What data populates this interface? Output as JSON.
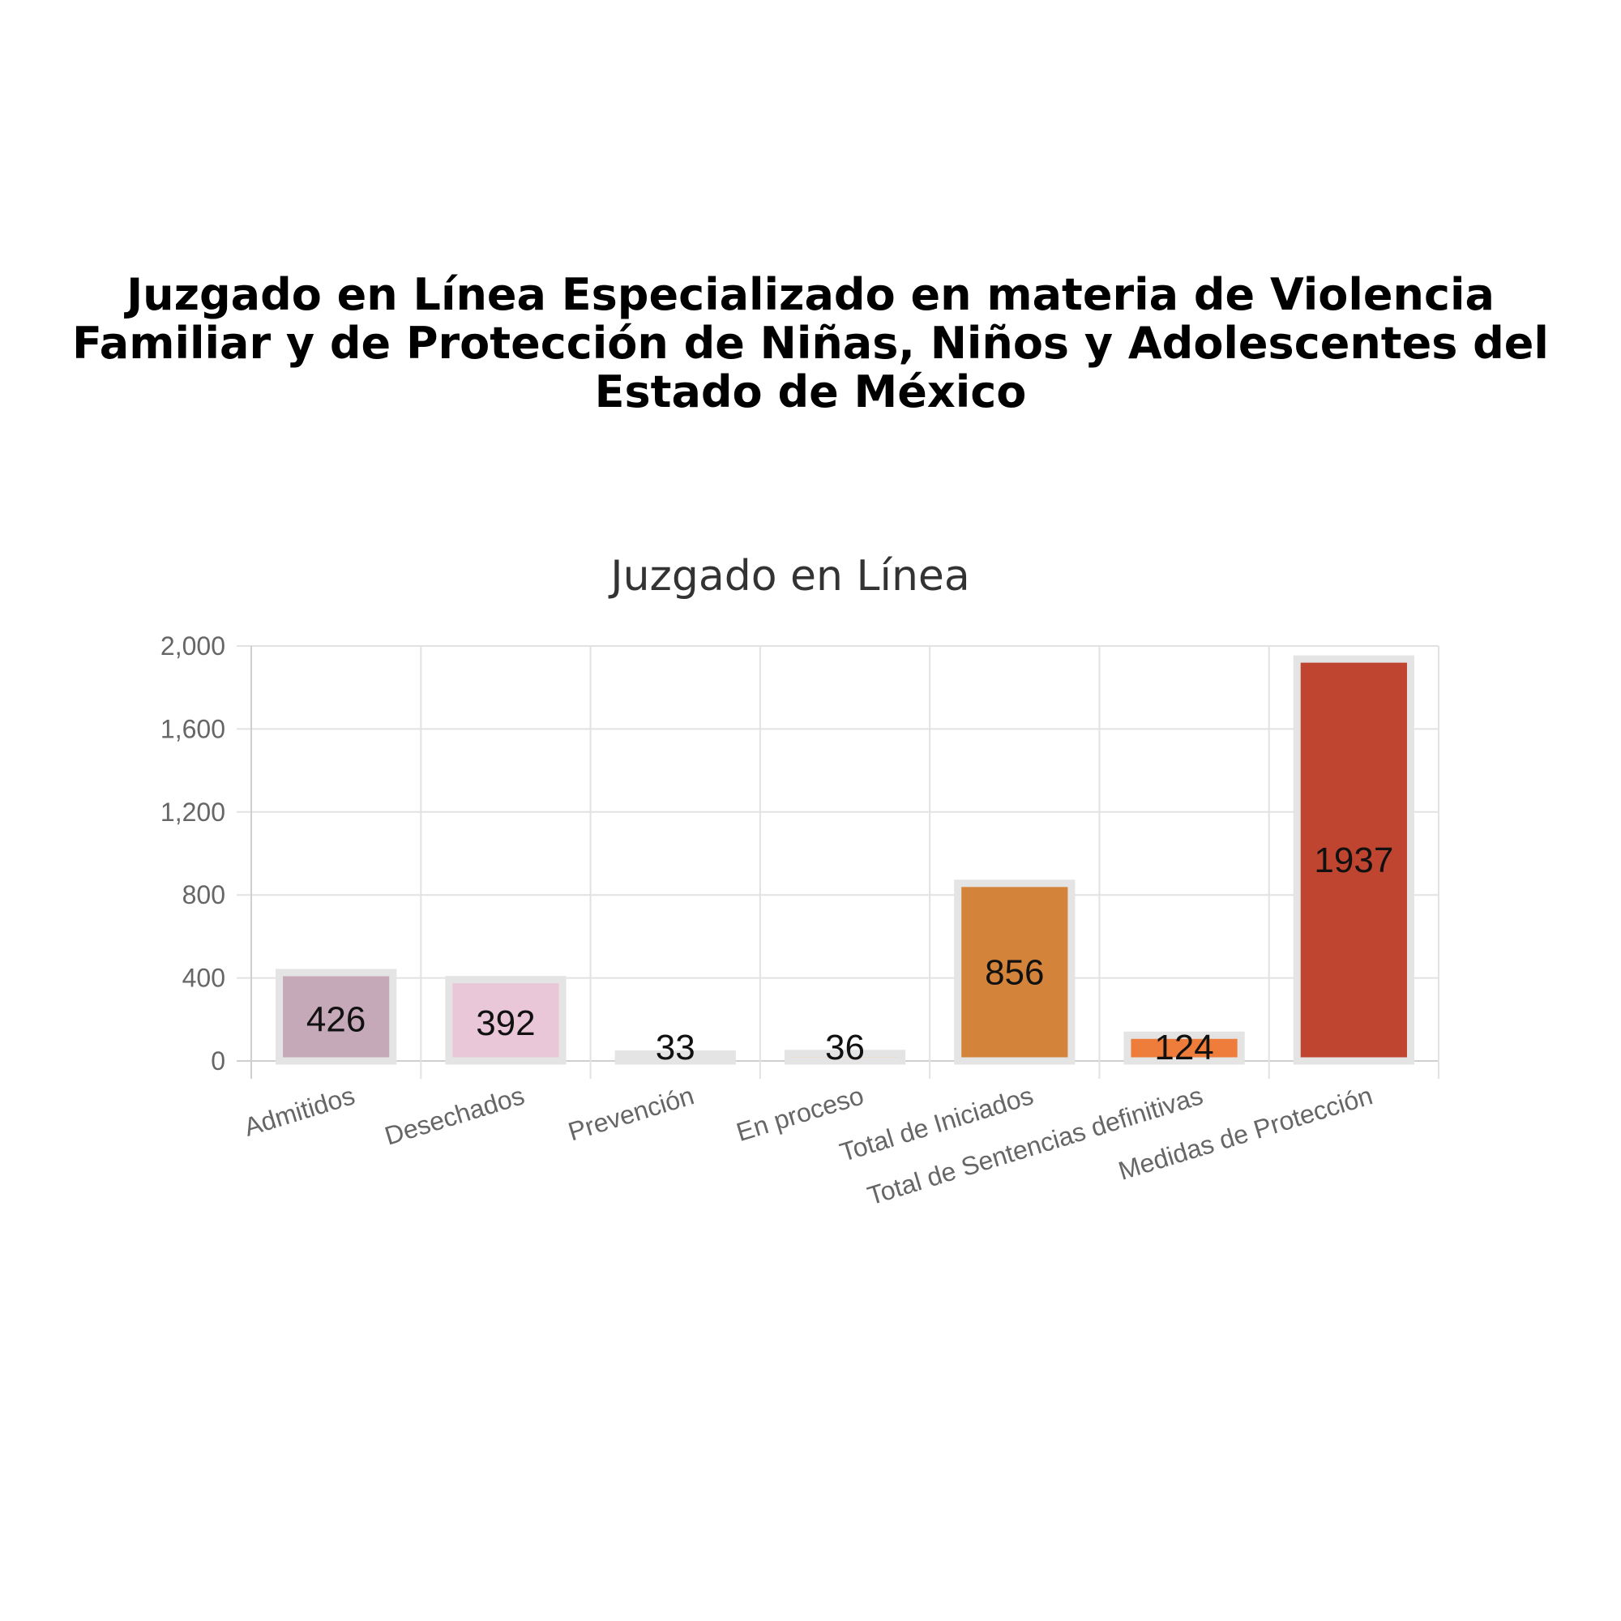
{
  "heading": "Juzgado en Línea Especializado en materia de Violencia Familiar y de Protección de Niñas, Niños y Adolescentes del Estado de México",
  "chart_data": {
    "type": "bar",
    "title": "Juzgado en Línea",
    "xlabel": "",
    "ylabel": "",
    "categories": [
      "Admitidos",
      "Desechados",
      "Prevención",
      "En proceso",
      "Total de Iniciados",
      "Total de Sentencias definitivas",
      "Medidas de Protección"
    ],
    "values": [
      426,
      392,
      33,
      36,
      856,
      124,
      1937
    ],
    "colors": [
      "#c6a9b8",
      "#e9c7d8",
      "#f4e3c4",
      "#f0c98a",
      "#d4843a",
      "#ee7c3a",
      "#bf4530"
    ],
    "bar_border_color": "#e4e4e4",
    "ylim": [
      0,
      2000
    ],
    "yticks": [
      0,
      400,
      800,
      1200,
      1600,
      2000
    ],
    "ytick_labels": [
      "0",
      "400",
      "800",
      "1,200",
      "1,600",
      "2,000"
    ],
    "grid": true,
    "legend": "none"
  }
}
